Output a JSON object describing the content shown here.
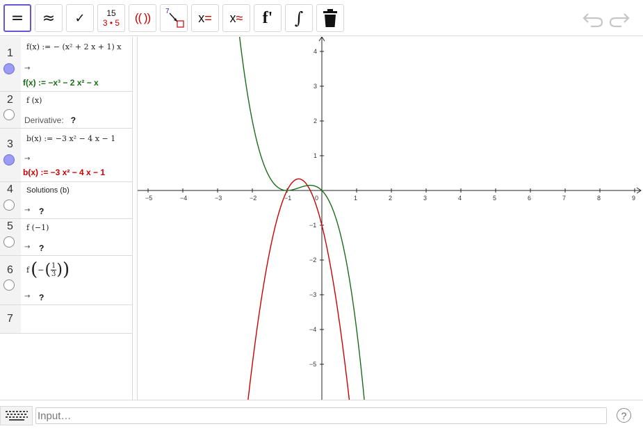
{
  "toolbar": {
    "evaluate_symbol": "=",
    "numeric_symbol": "≈",
    "check_symbol": "✓",
    "factor_top": "15",
    "factor_bottom": "3 • 5",
    "expand_symbol": "(( ))",
    "substitute_number": "7",
    "solve_x": "x",
    "solve_eq": "=",
    "nsolve_x": "x",
    "nsolve_eq": "≈",
    "derivative_symbol": "f'",
    "integral_symbol": "∫"
  },
  "algebra": {
    "rows": [
      {
        "num": "1",
        "input": "f(x) := − (x² + 2 x + 1) x",
        "arrow": "→",
        "output": "f(x) := −x³ − 2 x² − x",
        "output_color": "#1a6d17"
      },
      {
        "num": "2",
        "input": "f (x)",
        "label": "Derivative:",
        "value": "?"
      },
      {
        "num": "3",
        "input": "b(x) := −3 x² − 4 x − 1",
        "arrow": "→",
        "output": "b(x) := −3 x² − 4 x − 1",
        "output_color": "#cc0000"
      },
      {
        "num": "4",
        "input": "Solutions (b)",
        "arrow": "→",
        "value": "?"
      },
      {
        "num": "5",
        "input": "f (−1)",
        "arrow": "→",
        "value": "?"
      },
      {
        "num": "6",
        "input_prefix": "f",
        "input_minus": "−",
        "input_frac_num": "1",
        "input_frac_den": "3",
        "arrow": "→",
        "value": "?"
      },
      {
        "num": "7"
      }
    ]
  },
  "graphics": {
    "x_ticks": [
      "−5",
      "−4",
      "−3",
      "−2",
      "−1",
      "0",
      "1",
      "2",
      "3",
      "4",
      "5",
      "6",
      "7",
      "8",
      "9"
    ],
    "y_ticks_pos": [
      "4",
      "3",
      "2",
      "1"
    ],
    "y_ticks_neg": [
      "−1",
      "−2",
      "−3",
      "−4",
      "−5"
    ],
    "curve_f_color": "#1a6d17",
    "curve_b_color": "#cc0000"
  },
  "input_bar": {
    "placeholder": "Input…",
    "help_symbol": "?"
  }
}
